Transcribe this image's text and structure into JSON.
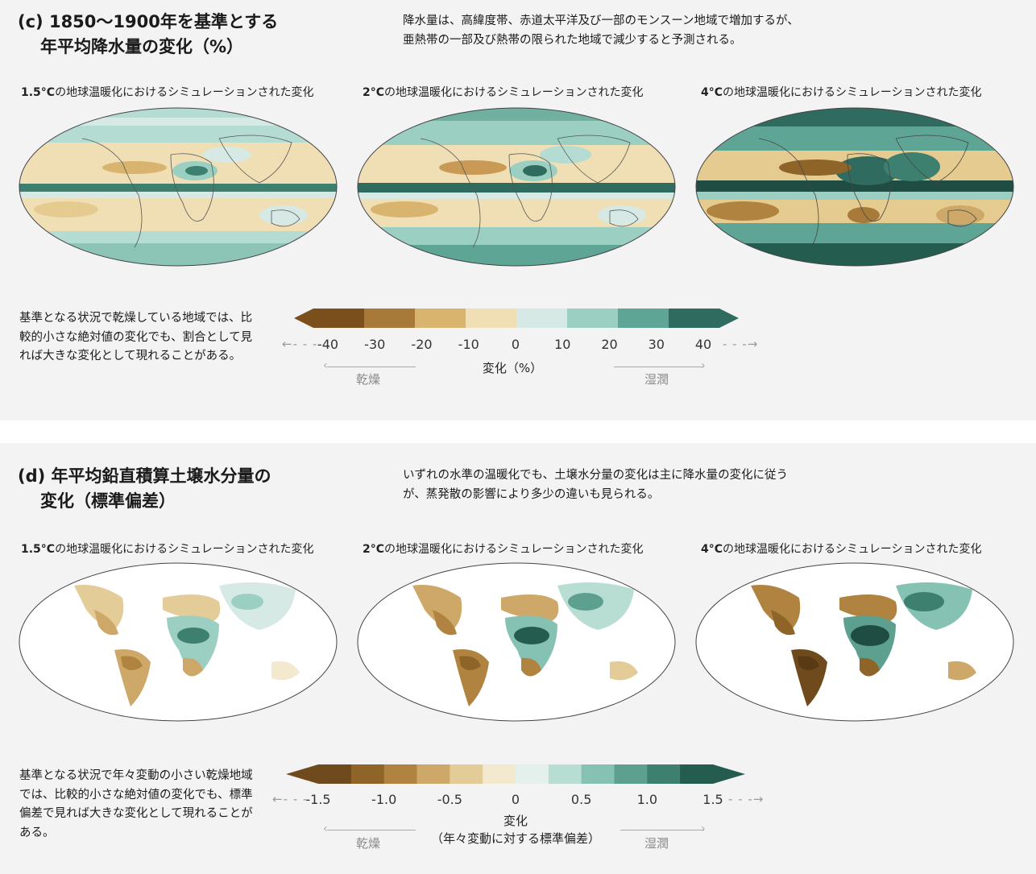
{
  "panel_c": {
    "title_line1": "(c) 1850〜1900年を基準とする",
    "title_line2": "年平均降水量の変化（%）",
    "description_line1": "降水量は、高緯度帯、赤道太平洋及び一部のモンスーン地域で増加するが、",
    "description_line2": "亜熱帯の一部及び熱帯の限られた地域で減少すると予測される。",
    "maps": [
      {
        "level": "1.5°C",
        "caption": "の地球温暖化におけるシミュレーションされた変化"
      },
      {
        "level": "2°C",
        "caption": "の地球温暖化におけるシミュレーションされた変化"
      },
      {
        "level": "4°C",
        "caption": "の地球温暖化におけるシミュレーションされた変化"
      }
    ],
    "note": "基準となる状況で乾燥している地域では、比較的小さな絶対値の変化でも、割合として見れば大きな変化として現れることがある。",
    "colorbar": {
      "ticks": [
        "-40",
        "-30",
        "-20",
        "-10",
        "0",
        "10",
        "20",
        "30",
        "40"
      ],
      "label": "変化（%）",
      "dry_label": "乾燥",
      "wet_label": "湿潤",
      "colors": [
        "#7a4f1c",
        "#a87a3a",
        "#d9b46e",
        "#f0dfb5",
        "#d6e9e4",
        "#9bcfc2",
        "#5fa595",
        "#2f6b5f"
      ]
    }
  },
  "panel_d": {
    "title_line1": "(d) 年平均鉛直積算土壌水分量の",
    "title_line2": "変化（標準偏差）",
    "description_line1": "いずれの水準の温暖化でも、土壌水分量の変化は主に降水量の変化に従う",
    "description_line2": "が、蒸発散の影響により多少の違いも見られる。",
    "maps": [
      {
        "level": "1.5°C",
        "caption": "の地球温暖化におけるシミュレーションされた変化"
      },
      {
        "level": "2°C",
        "caption": "の地球温暖化におけるシミュレーションされた変化"
      },
      {
        "level": "4°C",
        "caption": "の地球温暖化におけるシミュレーションされた変化"
      }
    ],
    "note": "基準となる状況で年々変動の小さい乾燥地域では、比較的小さな絶対値の変化でも、標準偏差で見れば大きな変化として現れることがある。",
    "colorbar": {
      "ticks": [
        "-1.5",
        "-1.0",
        "-0.5",
        "0",
        "0.5",
        "1.0",
        "1.5"
      ],
      "label_line1": "変化",
      "label_line2": "（年々変動に対する標準偏差）",
      "dry_label": "乾燥",
      "wet_label": "湿潤",
      "colors": [
        "#6f4a1c",
        "#8f6428",
        "#b08440",
        "#cda868",
        "#e3cc98",
        "#f3e9cf",
        "#e4f0ec",
        "#b8ddd3",
        "#86c2b3",
        "#5da08f",
        "#3e8070",
        "#255c50"
      ]
    }
  }
}
